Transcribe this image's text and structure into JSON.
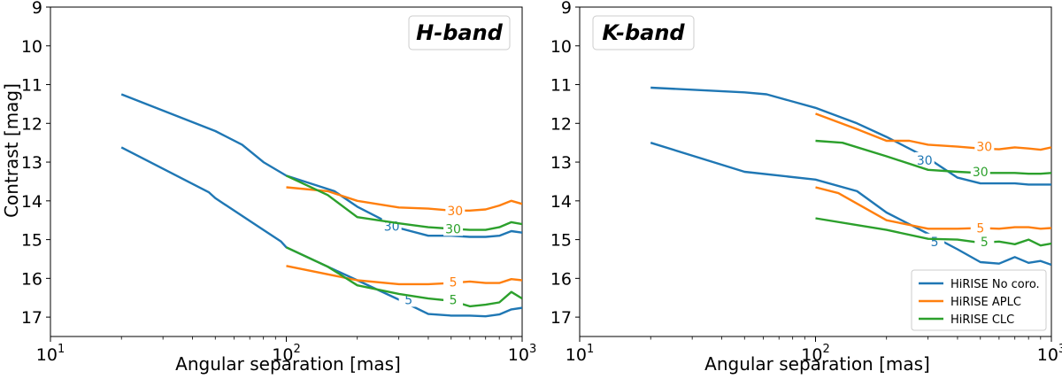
{
  "colors": {
    "HiRISE No coro.": "#1f77b4",
    "HiRISE APLC": "#ff7f0e",
    "HiRISE CLC": "#2ca02c"
  },
  "shared": {
    "ylabel": "Contrast [mag]",
    "xlabel": "Angular separation [mas]"
  },
  "chart_data": [
    {
      "type": "line",
      "title": "H-band",
      "xlabel": "Angular separation [mas]",
      "ylabel": "Contrast [mag]",
      "xscale": "log",
      "xlim": [
        10,
        1000
      ],
      "ylim": [
        17.5,
        9
      ],
      "yticks": [
        9,
        10,
        11,
        12,
        13,
        14,
        15,
        16,
        17
      ],
      "series": [
        {
          "name": "HiRISE No coro.",
          "level": "30",
          "label_at": 280,
          "label_y": 14.65,
          "points": [
            [
              20,
              11.25
            ],
            [
              50,
              12.2
            ],
            [
              65,
              12.55
            ],
            [
              80,
              13.0
            ],
            [
              100,
              13.35
            ],
            [
              160,
              13.75
            ],
            [
              200,
              14.15
            ],
            [
              300,
              14.7
            ],
            [
              400,
              14.9
            ],
            [
              500,
              14.9
            ],
            [
              600,
              14.93
            ],
            [
              700,
              14.93
            ],
            [
              800,
              14.9
            ],
            [
              900,
              14.78
            ],
            [
              1000,
              14.82
            ]
          ]
        },
        {
          "name": "HiRISE No coro.",
          "level": "5",
          "label_at": 330,
          "label_y": 16.55,
          "points": [
            [
              20,
              12.62
            ],
            [
              47,
              13.78
            ],
            [
              50,
              13.93
            ],
            [
              95,
              15.05
            ],
            [
              100,
              15.2
            ],
            [
              150,
              15.7
            ],
            [
              200,
              16.05
            ],
            [
              300,
              16.55
            ],
            [
              400,
              16.92
            ],
            [
              500,
              16.96
            ],
            [
              600,
              16.96
            ],
            [
              700,
              16.98
            ],
            [
              800,
              16.93
            ],
            [
              900,
              16.8
            ],
            [
              1000,
              16.76
            ]
          ]
        },
        {
          "name": "HiRISE APLC",
          "level": "30",
          "label_at": 520,
          "label_y": 14.25,
          "points": [
            [
              100,
              13.65
            ],
            [
              150,
              13.75
            ],
            [
              200,
              14.0
            ],
            [
              300,
              14.17
            ],
            [
              400,
              14.2
            ],
            [
              500,
              14.25
            ],
            [
              600,
              14.25
            ],
            [
              700,
              14.22
            ],
            [
              800,
              14.12
            ],
            [
              900,
              14.0
            ],
            [
              1000,
              14.08
            ]
          ]
        },
        {
          "name": "HiRISE APLC",
          "level": "5",
          "label_at": 510,
          "label_y": 16.1,
          "points": [
            [
              100,
              15.68
            ],
            [
              200,
              16.05
            ],
            [
              300,
              16.15
            ],
            [
              400,
              16.15
            ],
            [
              500,
              16.12
            ],
            [
              600,
              16.08
            ],
            [
              700,
              16.12
            ],
            [
              800,
              16.12
            ],
            [
              900,
              16.02
            ],
            [
              1000,
              16.05
            ]
          ]
        },
        {
          "name": "HiRISE CLC",
          "level": "30",
          "label_at": 510,
          "label_y": 14.72,
          "points": [
            [
              100,
              13.35
            ],
            [
              150,
              13.85
            ],
            [
              200,
              14.42
            ],
            [
              300,
              14.58
            ],
            [
              400,
              14.68
            ],
            [
              500,
              14.72
            ],
            [
              600,
              14.75
            ],
            [
              700,
              14.75
            ],
            [
              800,
              14.68
            ],
            [
              900,
              14.55
            ],
            [
              1000,
              14.6
            ]
          ]
        },
        {
          "name": "HiRISE CLC",
          "level": "5",
          "label_at": 510,
          "label_y": 16.55,
          "points": [
            [
              100,
              15.2
            ],
            [
              150,
              15.7
            ],
            [
              200,
              16.18
            ],
            [
              300,
              16.4
            ],
            [
              400,
              16.52
            ],
            [
              500,
              16.58
            ],
            [
              600,
              16.72
            ],
            [
              700,
              16.68
            ],
            [
              800,
              16.62
            ],
            [
              900,
              16.35
            ],
            [
              1000,
              16.52
            ]
          ]
        }
      ]
    },
    {
      "type": "line",
      "title": "K-band",
      "xlabel": "Angular separation [mas]",
      "ylabel": "",
      "xscale": "log",
      "xlim": [
        10,
        1000
      ],
      "ylim": [
        17.5,
        9
      ],
      "yticks": [
        9,
        10,
        11,
        12,
        13,
        14,
        15,
        16,
        17
      ],
      "legend": {
        "position": "lower-right",
        "entries": [
          "HiRISE No coro.",
          "HiRISE APLC",
          "HiRISE CLC"
        ]
      },
      "series": [
        {
          "name": "HiRISE No coro.",
          "level": "30",
          "label_at": 290,
          "label_y": 12.95,
          "points": [
            [
              20,
              11.08
            ],
            [
              50,
              11.2
            ],
            [
              62,
              11.25
            ],
            [
              100,
              11.6
            ],
            [
              150,
              12.0
            ],
            [
              200,
              12.35
            ],
            [
              300,
              12.9
            ],
            [
              400,
              13.4
            ],
            [
              500,
              13.55
            ],
            [
              600,
              13.55
            ],
            [
              700,
              13.55
            ],
            [
              800,
              13.58
            ],
            [
              900,
              13.58
            ],
            [
              1000,
              13.58
            ]
          ]
        },
        {
          "name": "HiRISE No coro.",
          "level": "5",
          "label_at": 320,
          "label_y": 15.05,
          "points": [
            [
              20,
              12.5
            ],
            [
              50,
              13.25
            ],
            [
              100,
              13.45
            ],
            [
              150,
              13.75
            ],
            [
              200,
              14.3
            ],
            [
              300,
              14.85
            ],
            [
              400,
              15.25
            ],
            [
              500,
              15.58
            ],
            [
              600,
              15.62
            ],
            [
              700,
              15.45
            ],
            [
              800,
              15.6
            ],
            [
              900,
              15.55
            ],
            [
              1000,
              15.65
            ]
          ]
        },
        {
          "name": "HiRISE APLC",
          "level": "30",
          "label_at": 520,
          "label_y": 12.6,
          "points": [
            [
              100,
              11.75
            ],
            [
              150,
              12.15
            ],
            [
              200,
              12.45
            ],
            [
              250,
              12.45
            ],
            [
              300,
              12.55
            ],
            [
              400,
              12.6
            ],
            [
              500,
              12.65
            ],
            [
              600,
              12.67
            ],
            [
              700,
              12.62
            ],
            [
              800,
              12.65
            ],
            [
              900,
              12.68
            ],
            [
              1000,
              12.62
            ]
          ]
        },
        {
          "name": "HiRISE APLC",
          "level": "5",
          "label_at": 500,
          "label_y": 14.7,
          "points": [
            [
              100,
              13.65
            ],
            [
              125,
              13.8
            ],
            [
              200,
              14.5
            ],
            [
              300,
              14.72
            ],
            [
              400,
              14.72
            ],
            [
              500,
              14.7
            ],
            [
              600,
              14.72
            ],
            [
              700,
              14.68
            ],
            [
              800,
              14.68
            ],
            [
              900,
              14.72
            ],
            [
              1000,
              14.7
            ]
          ]
        },
        {
          "name": "HiRISE CLC",
          "level": "30",
          "label_at": 500,
          "label_y": 13.25,
          "points": [
            [
              100,
              12.45
            ],
            [
              130,
              12.5
            ],
            [
              200,
              12.85
            ],
            [
              300,
              13.2
            ],
            [
              400,
              13.25
            ],
            [
              500,
              13.28
            ],
            [
              600,
              13.28
            ],
            [
              700,
              13.28
            ],
            [
              800,
              13.3
            ],
            [
              900,
              13.3
            ],
            [
              1000,
              13.28
            ]
          ]
        },
        {
          "name": "HiRISE CLC",
          "level": "5",
          "label_at": 520,
          "label_y": 15.05,
          "points": [
            [
              100,
              14.45
            ],
            [
              200,
              14.75
            ],
            [
              300,
              14.98
            ],
            [
              400,
              15.0
            ],
            [
              500,
              15.08
            ],
            [
              600,
              15.05
            ],
            [
              700,
              15.12
            ],
            [
              800,
              15.0
            ],
            [
              900,
              15.15
            ],
            [
              1000,
              15.1
            ]
          ]
        }
      ]
    }
  ]
}
